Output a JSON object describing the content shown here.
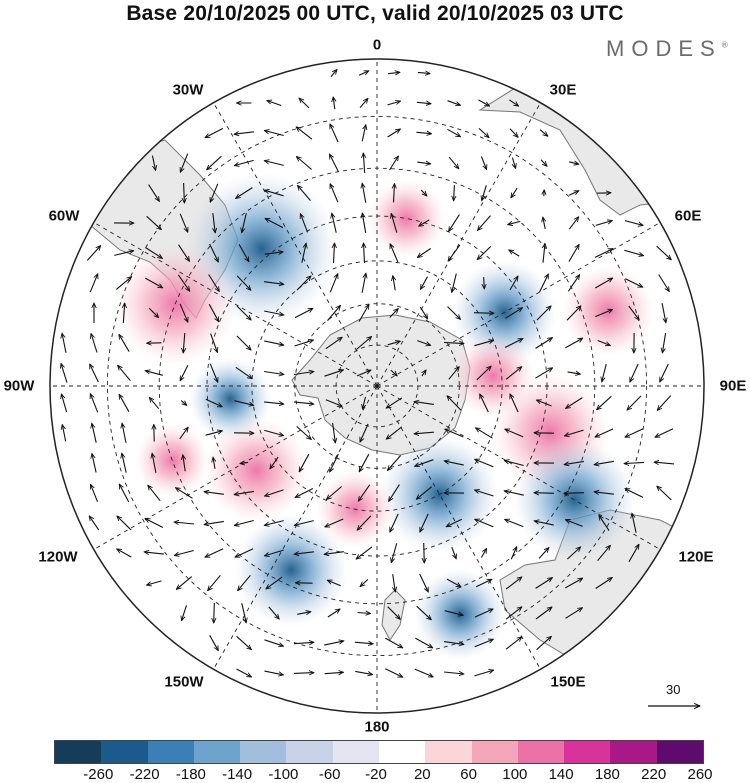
{
  "title": "Base 20/10/2025 00 UTC, valid 20/10/2025 03 UTC",
  "brand": "MODES",
  "brand_mark": "®",
  "map": {
    "projection": "south-polar-stereographic",
    "longitude_labels": [
      "0",
      "30E",
      "60E",
      "90E",
      "120E",
      "150E",
      "180",
      "150W",
      "120W",
      "90W",
      "60W",
      "30W"
    ],
    "reference_vector": {
      "value": "30"
    },
    "colors": {
      "land": "#e9e9e9",
      "coast": "#777777",
      "grid": "#222222",
      "arrow": "#111111"
    },
    "anomaly_centers": [
      {
        "lon": -40,
        "lat": -48,
        "value": -220
      },
      {
        "lon": -68,
        "lat": -40,
        "value": 150
      },
      {
        "lon": 10,
        "lat": -50,
        "value": 50
      },
      {
        "lon": 60,
        "lat": -55,
        "value": -110
      },
      {
        "lon": 72,
        "lat": -35,
        "value": 80
      },
      {
        "lon": 85,
        "lat": -62,
        "value": 60
      },
      {
        "lon": 105,
        "lat": -48,
        "value": 140
      },
      {
        "lon": 120,
        "lat": -38,
        "value": -150
      },
      {
        "lon": 150,
        "lat": -60,
        "value": -140
      },
      {
        "lon": -155,
        "lat": -43,
        "value": -130
      },
      {
        "lon": -125,
        "lat": -55,
        "value": 110
      },
      {
        "lon": -95,
        "lat": -55,
        "value": -60
      },
      {
        "lon": -170,
        "lat": -60,
        "value": 50
      },
      {
        "lon": 160,
        "lat": -35,
        "value": -80
      },
      {
        "lon": -110,
        "lat": -40,
        "value": 40
      }
    ]
  },
  "colorbar": {
    "ticks": [
      "-260",
      "-220",
      "-180",
      "-140",
      "-100",
      "-60",
      "-20",
      "20",
      "60",
      "100",
      "140",
      "180",
      "220",
      "260"
    ],
    "colors": [
      "#163c5c",
      "#1b5a8a",
      "#3a7fb5",
      "#6ea3cd",
      "#a3bedd",
      "#c8d2e8",
      "#e4e5f1",
      "#ffffff",
      "#fad6da",
      "#f4a6bb",
      "#ec71a6",
      "#d8339a",
      "#a91887",
      "#5f0b6e"
    ]
  }
}
